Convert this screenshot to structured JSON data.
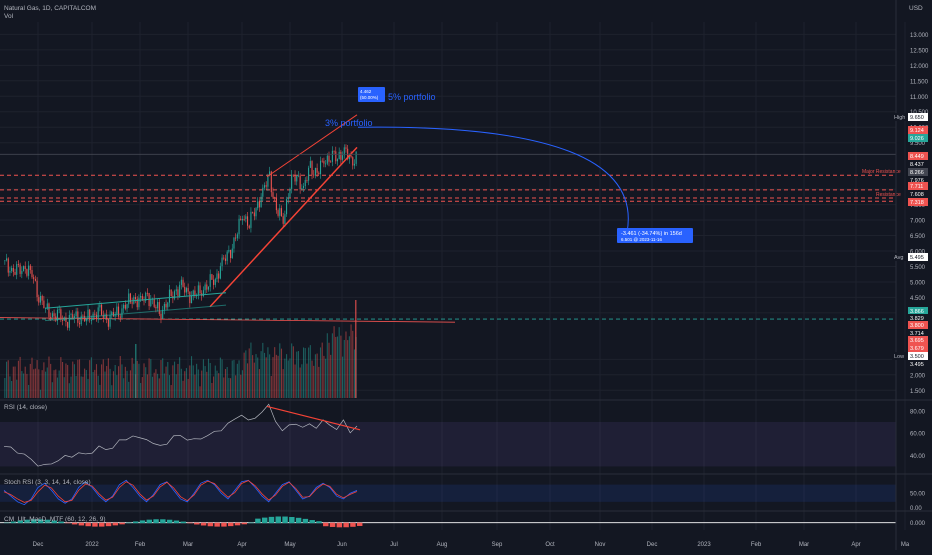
{
  "symbol": {
    "title": "Natural Gas, 1D, CAPITALCOM",
    "volume_label": "Vol",
    "currency": "USD"
  },
  "colors": {
    "bg": "#131722",
    "grid": "#1e222d",
    "text": "#b2b5be",
    "up": "#26a69a",
    "down": "#ef5350",
    "trend_line": "#f44336",
    "channel_line": "#26a69a",
    "projection": "#2962ff",
    "rsi_line": "#b2b5be",
    "rsi_band": "#7e57c2",
    "stoch_k": "#2962ff",
    "stoch_d": "#f44336"
  },
  "chart_data": [
    {
      "type": "candlestick",
      "title": "Natural Gas, 1D, CAPITALCOM",
      "x_ticks": [
        "Dec",
        "2022",
        "Feb",
        "Mar",
        "Apr",
        "May",
        "Jun",
        "Jul",
        "Aug",
        "Sep",
        "Oct",
        "Nov",
        "Dec",
        "2023",
        "Feb",
        "Mar",
        "Apr",
        "Ma"
      ],
      "y_ticks": [
        "13.000",
        "12.500",
        "12.000",
        "11.500",
        "11.000",
        "10.500",
        "10.000",
        "9.500",
        "8.000",
        "7.500",
        "7.000",
        "6.500",
        "6.000",
        "5.500",
        "5.000",
        "4.500",
        "4.000",
        "2.500",
        "2.000",
        "1.500"
      ],
      "ylim": [
        1.25,
        13.4
      ],
      "price_path": [
        5.6,
        5.4,
        5.3,
        5.5,
        5.2,
        4.6,
        4.1,
        3.95,
        3.85,
        3.75,
        3.85,
        3.9,
        3.8,
        3.95,
        4.0,
        3.8,
        3.9,
        4.1,
        4.3,
        4.5,
        4.3,
        4.6,
        4.2,
        4.05,
        4.4,
        4.7,
        4.85,
        4.6,
        4.55,
        4.75,
        4.95,
        5.1,
        5.6,
        5.9,
        6.4,
        7.2,
        6.9,
        7.4,
        7.9,
        8.4,
        7.3,
        7.0,
        8.2,
        8.45,
        8.0,
        8.7,
        8.5,
        8.9,
        9.1,
        9.0,
        9.3,
        8.8,
        9.2
      ],
      "price_labels": [
        {
          "label": "High",
          "value": "9.650",
          "color": "#ffffff"
        },
        {
          "label": "",
          "value": "9.124",
          "color": "#ef5350"
        },
        {
          "label": "",
          "value": "9.026",
          "color": "#26a69a"
        },
        {
          "label": "",
          "value": "8.449",
          "color": "#ef5350"
        },
        {
          "label": "",
          "value": "8.437",
          "color": "#131722"
        },
        {
          "label": "",
          "value": "8.266",
          "color": "#434651"
        },
        {
          "label": "",
          "value": "7.976",
          "color": "#131722"
        },
        {
          "label": "",
          "value": "7.711",
          "color": "#ef5350"
        },
        {
          "label": "",
          "value": "7.608",
          "color": "#131722"
        },
        {
          "label": "",
          "value": "7.318",
          "color": "#ef5350"
        },
        {
          "label": "Avg",
          "value": "5.495",
          "color": "#ffffff"
        },
        {
          "label": "",
          "value": "3.866",
          "color": "#26a69a"
        },
        {
          "label": "",
          "value": "3.829",
          "color": "#131722"
        },
        {
          "label": "",
          "value": "3.800",
          "color": "#ef5350"
        },
        {
          "label": "",
          "value": "3.714",
          "color": "#131722"
        },
        {
          "label": "",
          "value": "3.695",
          "color": "#ef5350"
        },
        {
          "label": "",
          "value": "3.679",
          "color": "#ef5350"
        },
        {
          "label": "Low",
          "value": "3.500",
          "color": "#ffffff"
        },
        {
          "label": "",
          "value": "3.495",
          "color": "#131722"
        }
      ],
      "horizontal_levels": [
        {
          "label": "Major Resistance",
          "value": 8.449
        },
        {
          "label": "",
          "value": 7.976
        },
        {
          "label": "Resistance",
          "value": 7.711
        },
        {
          "label": "",
          "value": 7.608
        }
      ],
      "annotations": {
        "small_box_line1": "4.462",
        "small_box_line2": "(50.00%)",
        "label_5pct": "5% portfolio",
        "label_3pct": "3% portfolio",
        "projection_line1": "-3.461 (-34.74%) in 156d",
        "projection_line2": "6.501 @ 2023-11-16"
      }
    },
    {
      "type": "line",
      "title": "RSI (14, close)",
      "y_ticks": [
        "80.00",
        "60.00",
        "40.00"
      ],
      "ylim": [
        25,
        88
      ],
      "band": [
        30,
        70
      ],
      "values": [
        48,
        46,
        44,
        40,
        36,
        32,
        30,
        33,
        36,
        38,
        40,
        42,
        40,
        44,
        47,
        45,
        48,
        52,
        55,
        58,
        54,
        56,
        50,
        48,
        52,
        56,
        58,
        55,
        53,
        56,
        58,
        60,
        64,
        68,
        72,
        78,
        70,
        74,
        80,
        84,
        72,
        62,
        66,
        70,
        64,
        68,
        66,
        70,
        68,
        64,
        70,
        62,
        66
      ]
    },
    {
      "type": "line",
      "title": "Stoch RSI (3, 3, 14, 14, close)",
      "y_ticks": [
        "50.00",
        "0.00"
      ],
      "ylim": [
        -5,
        110
      ],
      "band": [
        20,
        80
      ],
      "k": [
        60,
        40,
        20,
        10,
        30,
        70,
        85,
        60,
        30,
        15,
        30,
        70,
        90,
        70,
        40,
        20,
        40,
        80,
        95,
        70,
        40,
        20,
        45,
        80,
        90,
        60,
        30,
        20,
        50,
        85,
        95,
        80,
        50,
        30,
        60,
        90,
        95,
        70,
        40,
        20,
        50,
        80,
        90,
        60,
        30,
        40,
        70,
        85,
        70,
        40,
        30,
        50,
        60
      ],
      "d": [
        55,
        45,
        30,
        18,
        25,
        55,
        78,
        68,
        40,
        20,
        25,
        60,
        82,
        75,
        48,
        26,
        36,
        70,
        90,
        78,
        48,
        26,
        40,
        72,
        88,
        68,
        38,
        24,
        44,
        78,
        92,
        84,
        58,
        36,
        52,
        84,
        94,
        76,
        48,
        26,
        44,
        74,
        88,
        66,
        36,
        38,
        64,
        82,
        74,
        46,
        34,
        46,
        56
      ]
    },
    {
      "type": "histogram",
      "title": "CM_Ult_MacD_MTF (60, 12, 26, 9)",
      "y_ticks": [
        "0.000"
      ],
      "ylim": [
        -0.12,
        0.14
      ]
    }
  ]
}
